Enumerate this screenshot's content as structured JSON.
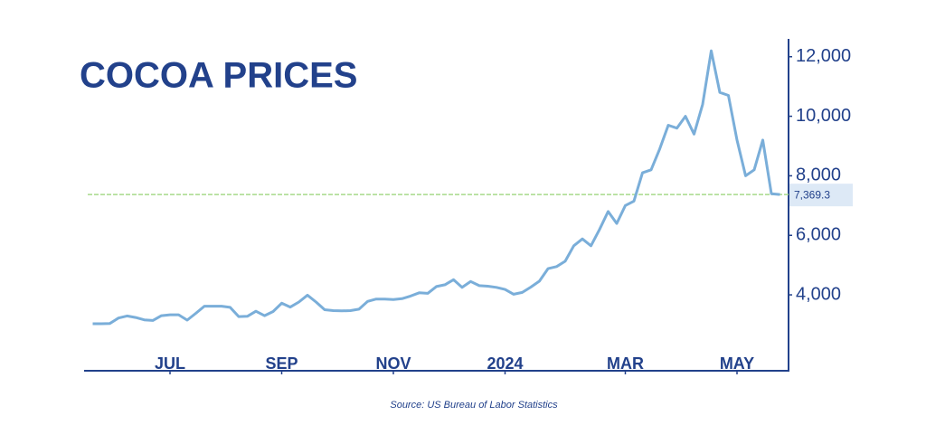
{
  "chart_data": {
    "type": "line",
    "title": "COCOA PRICES",
    "source": "Source: US Bureau of Labor Statistics",
    "series": [
      {
        "name": "Cocoa price",
        "color": "#7aaed9",
        "values": [
          3030,
          3030,
          3040,
          3220,
          3290,
          3240,
          3160,
          3140,
          3300,
          3330,
          3330,
          3150,
          3380,
          3620,
          3620,
          3620,
          3580,
          3270,
          3280,
          3450,
          3300,
          3440,
          3720,
          3590,
          3760,
          3990,
          3760,
          3500,
          3470,
          3460,
          3470,
          3520,
          3780,
          3860,
          3860,
          3840,
          3870,
          3960,
          4070,
          4050,
          4280,
          4340,
          4510,
          4250,
          4450,
          4310,
          4290,
          4250,
          4180,
          4020,
          4080,
          4260,
          4460,
          4880,
          4950,
          5130,
          5650,
          5880,
          5650,
          6200,
          6800,
          6400,
          7000,
          7150,
          8100,
          8200,
          8900,
          9700,
          9600,
          10000,
          9400,
          10400,
          12200,
          10800,
          10700,
          9200,
          8000,
          8200,
          9200,
          7400,
          7370
        ]
      }
    ],
    "reference": {
      "value": 7369.3,
      "label": "7,369.3",
      "color": "#a8d98a"
    },
    "xlim": [
      -1,
      81
    ],
    "xticks": [
      {
        "value": 9,
        "label": "JUL"
      },
      {
        "value": 22,
        "label": "SEP"
      },
      {
        "value": 35,
        "label": "NOV"
      },
      {
        "value": 48,
        "label": "2024",
        "color": "#8fce7a"
      },
      {
        "value": 62,
        "label": "MAR"
      },
      {
        "value": 75,
        "label": "MAY"
      }
    ],
    "ylim": [
      1450,
      12600
    ],
    "yticks": [
      {
        "value": 4000,
        "label": "4,000"
      },
      {
        "value": 6000,
        "label": "6,000"
      },
      {
        "value": 8000,
        "label": "8,000"
      },
      {
        "value": 10000,
        "label": "10,000"
      },
      {
        "value": 12000,
        "label": "12,000"
      }
    ]
  }
}
